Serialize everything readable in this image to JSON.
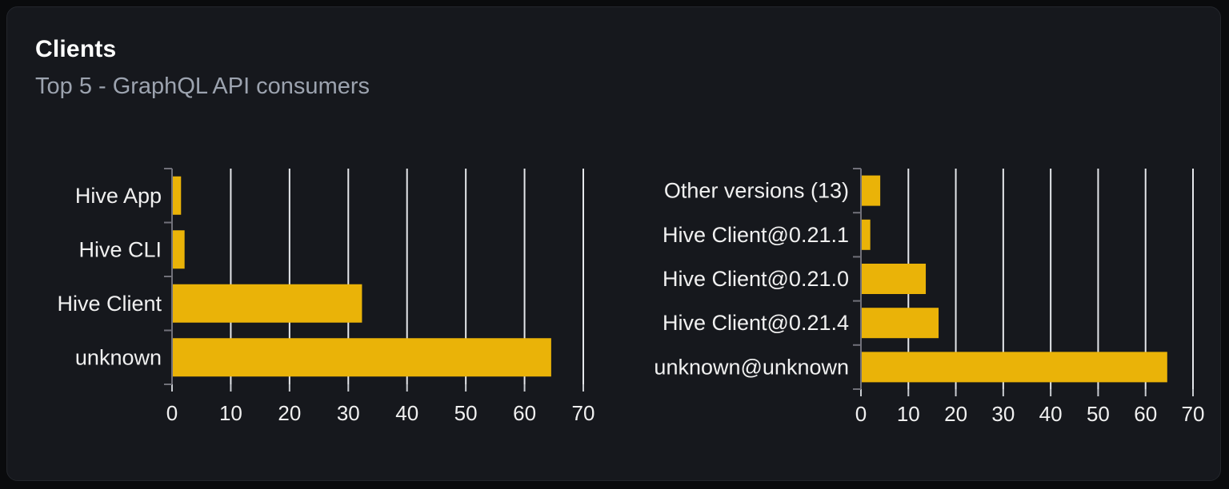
{
  "panel": {
    "title": "Clients",
    "subtitle": "Top 5 - GraphQL API consumers"
  },
  "colors": {
    "bar": "#eab308",
    "gridline": "#e5e7eb",
    "axis": "#71717a",
    "x_tick": "#c9ccd1",
    "chart_text": "#f0f0f0",
    "card_background": "#16181d",
    "page_background": "#0a0b0d",
    "title_text": "#ffffff",
    "subtitle_text": "#9ca3af"
  },
  "chart_data": [
    {
      "type": "bar",
      "orientation": "horizontal",
      "name": "clients-by-name",
      "categories": [
        "Hive App",
        "Hive CLI",
        "Hive Client",
        "unknown"
      ],
      "values": [
        1.4,
        2.0,
        32.2,
        64.4
      ],
      "xlim": [
        0,
        70
      ],
      "xticks": [
        "0",
        "10",
        "20",
        "30",
        "40",
        "50",
        "60",
        "70"
      ],
      "xtick_values": [
        0,
        10,
        20,
        30,
        40,
        50,
        60,
        70
      ],
      "grid": true,
      "legend": false,
      "title": "",
      "xlabel": "",
      "ylabel": ""
    },
    {
      "type": "bar",
      "orientation": "horizontal",
      "name": "clients-by-version",
      "categories": [
        "Other versions (13)",
        "Hive Client@0.21.1",
        "Hive Client@0.21.0",
        "Hive Client@0.21.4",
        "unknown@unknown"
      ],
      "values": [
        3.9,
        1.8,
        13.5,
        16.2,
        64.4
      ],
      "xlim": [
        0,
        70
      ],
      "xticks": [
        "0",
        "10",
        "20",
        "30",
        "40",
        "50",
        "60",
        "70"
      ],
      "xtick_values": [
        0,
        10,
        20,
        30,
        40,
        50,
        60,
        70
      ],
      "grid": true,
      "legend": false,
      "title": "",
      "xlabel": "",
      "ylabel": ""
    }
  ]
}
